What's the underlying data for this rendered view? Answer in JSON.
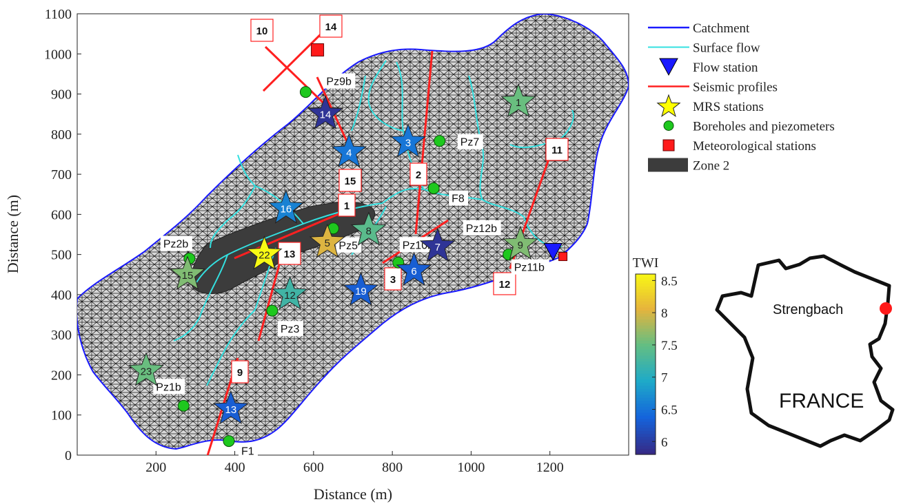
{
  "axes": {
    "xlabel": "Distance (m)",
    "ylabel": "Distance (m)",
    "xlim": [
      0,
      1400
    ],
    "ylim": [
      0,
      1100
    ],
    "xticks": [
      200,
      400,
      600,
      800,
      1000,
      1200
    ],
    "xtick_labels": [
      "200",
      "400",
      "600",
      "800",
      "1000",
      "1200"
    ],
    "yticks": [
      0,
      100,
      200,
      300,
      400,
      500,
      600,
      700,
      800,
      900,
      1000,
      1100
    ],
    "ytick_labels": [
      "0",
      "100",
      "200",
      "300",
      "400",
      "500",
      "600",
      "700",
      "800",
      "900",
      "1000",
      "1100"
    ]
  },
  "colors": {
    "catchment": "#1a1aff",
    "surface_flow": "#33e0e0",
    "seismic": "#ff2020",
    "mesh": "#1a1a1a",
    "zone2": "#3c3c3c",
    "borehole": "#1ec81e",
    "meteo": "#ff1a1a",
    "flow_station": "#1a1aff",
    "mrs_legend": "#ffff00"
  },
  "legend": {
    "items": [
      {
        "label": "Catchment",
        "symbol": "catchment-line"
      },
      {
        "label": "Surface flow",
        "symbol": "surface-flow-line"
      },
      {
        "label": "Flow station",
        "symbol": "flow-station-triangle"
      },
      {
        "label": "Seismic profiles",
        "symbol": "seismic-line"
      },
      {
        "label": "MRS stations",
        "symbol": "mrs-star"
      },
      {
        "label": "Boreholes and piezometers",
        "symbol": "borehole-circle"
      },
      {
        "label": "Meteorological stations",
        "symbol": "meteo-square"
      },
      {
        "label": "Zone 2",
        "symbol": "zone2-patch"
      }
    ]
  },
  "colorbar": {
    "title": "TWI",
    "range": [
      5.8,
      8.6
    ],
    "ticks": [
      6,
      6.5,
      7,
      7.5,
      8,
      8.5
    ],
    "tick_labels": [
      "6",
      "6.5",
      "7",
      "7.5",
      "8",
      "8.5"
    ]
  },
  "mrs_stations": [
    {
      "label": "1",
      "x": 1120,
      "y": 880,
      "twi": 7.5
    },
    {
      "label": "3",
      "x": 840,
      "y": 780,
      "twi": 6.5
    },
    {
      "label": "4",
      "x": 690,
      "y": 755,
      "twi": 6.5
    },
    {
      "label": "14",
      "x": 630,
      "y": 850,
      "twi": 5.9
    },
    {
      "label": "16",
      "x": 530,
      "y": 615,
      "twi": 6.6
    },
    {
      "label": "8",
      "x": 740,
      "y": 560,
      "twi": 7.4
    },
    {
      "label": "5",
      "x": 635,
      "y": 530,
      "twi": 8.0
    },
    {
      "label": "7",
      "x": 915,
      "y": 520,
      "twi": 5.9
    },
    {
      "label": "9",
      "x": 1125,
      "y": 525,
      "twi": 7.6
    },
    {
      "label": "22",
      "x": 475,
      "y": 500,
      "twi": 8.6
    },
    {
      "label": "6",
      "x": 855,
      "y": 460,
      "twi": 6.3
    },
    {
      "label": "19",
      "x": 720,
      "y": 410,
      "twi": 6.3
    },
    {
      "label": "12",
      "x": 540,
      "y": 400,
      "twi": 7.2
    },
    {
      "label": "15",
      "x": 280,
      "y": 450,
      "twi": 7.6
    },
    {
      "label": "23",
      "x": 175,
      "y": 210,
      "twi": 7.5
    },
    {
      "label": "13",
      "x": 390,
      "y": 115,
      "twi": 6.3
    }
  ],
  "boreholes": [
    {
      "label": "Pz9b",
      "x": 580,
      "y": 905,
      "lx": 30,
      "ly": -12
    },
    {
      "label": "Pz7",
      "x": 920,
      "y": 783,
      "lx": 30,
      "ly": 5
    },
    {
      "label": "F8",
      "x": 905,
      "y": 665,
      "lx": 26,
      "ly": 18
    },
    {
      "label": "Pz12b",
      "x": 1060,
      "y": 570,
      "lx": -42,
      "ly": 6
    },
    {
      "label": "Pz2b",
      "x": 285,
      "y": 490,
      "lx": -38,
      "ly": -18
    },
    {
      "label": "Pz5",
      "x": 650,
      "y": 565,
      "lx": 8,
      "ly": 28
    },
    {
      "label": "Pz10b",
      "x": 815,
      "y": 480,
      "lx": 6,
      "ly": -22
    },
    {
      "label": "Pz11b",
      "x": 1095,
      "y": 500,
      "lx": 8,
      "ly": 22
    },
    {
      "label": "Pz3",
      "x": 495,
      "y": 360,
      "lx": 12,
      "ly": 30
    },
    {
      "label": "Pz1b",
      "x": 270,
      "y": 123,
      "lx": -40,
      "ly": -24
    },
    {
      "label": "F1",
      "x": 385,
      "y": 35,
      "lx": 18,
      "ly": 18
    }
  ],
  "seismic_labels": [
    {
      "label": "10"
    },
    {
      "label": "14"
    },
    {
      "label": "15"
    },
    {
      "label": "1"
    },
    {
      "label": "13"
    },
    {
      "label": "2"
    },
    {
      "label": "3"
    },
    {
      "label": "11"
    },
    {
      "label": "12"
    },
    {
      "label": "9"
    }
  ],
  "flow_station": {
    "x": 1208,
    "y": 507
  },
  "meteo_stations": [
    {
      "x": 610,
      "y": 1010
    },
    {
      "x": 1233,
      "y": 495
    }
  ],
  "inset": {
    "country": "FRANCE",
    "site": "Strengbach"
  }
}
